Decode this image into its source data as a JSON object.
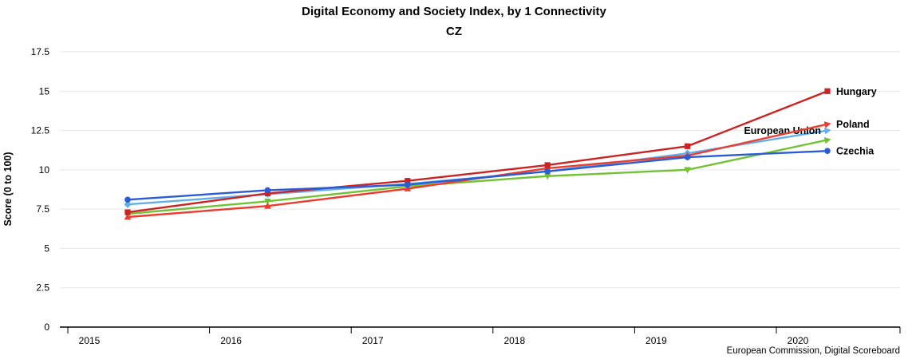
{
  "header": {
    "title": "Digital Economy and Society Index, by 1 Connectivity",
    "subtitle": "CZ"
  },
  "footer": {
    "credit": "European Commission, Digital Scoreboard"
  },
  "chart_data": {
    "type": "line",
    "x": [
      2015,
      2016,
      2017,
      2018,
      2019,
      2020
    ],
    "xlabel": "",
    "ylabel": "Score (0 to 100)",
    "ylim": [
      0,
      17.5
    ],
    "yticks": [
      0,
      2.5,
      5,
      7.5,
      10,
      12.5,
      15,
      17.5
    ],
    "grid": true,
    "legend_position": "end-of-line labels",
    "series": [
      {
        "name": "European Union",
        "color": "#62aeea",
        "marker": "diamond",
        "label_position": "left",
        "values": [
          7.8,
          8.45,
          9.1,
          9.9,
          11.05,
          12.5
        ]
      },
      {
        "name": "",
        "color": "#72c235",
        "marker": "triangle-down",
        "label_position": "none",
        "values": [
          7.2,
          8.0,
          8.95,
          9.6,
          10.0,
          11.9
        ]
      },
      {
        "name": "Poland",
        "color": "#ed3b2e",
        "marker": "triangle-up",
        "label_position": "right",
        "values": [
          7.0,
          7.7,
          8.8,
          10.1,
          10.9,
          12.9
        ]
      },
      {
        "name": "Hungary",
        "color": "#cc2222",
        "marker": "square",
        "label_position": "right",
        "values": [
          7.3,
          8.5,
          9.3,
          10.3,
          11.5,
          15.0
        ]
      },
      {
        "name": "Czechia",
        "color": "#2a5cd6",
        "marker": "circle",
        "label_position": "right",
        "values": [
          8.1,
          8.7,
          9.05,
          9.9,
          10.8,
          11.2
        ]
      }
    ]
  }
}
